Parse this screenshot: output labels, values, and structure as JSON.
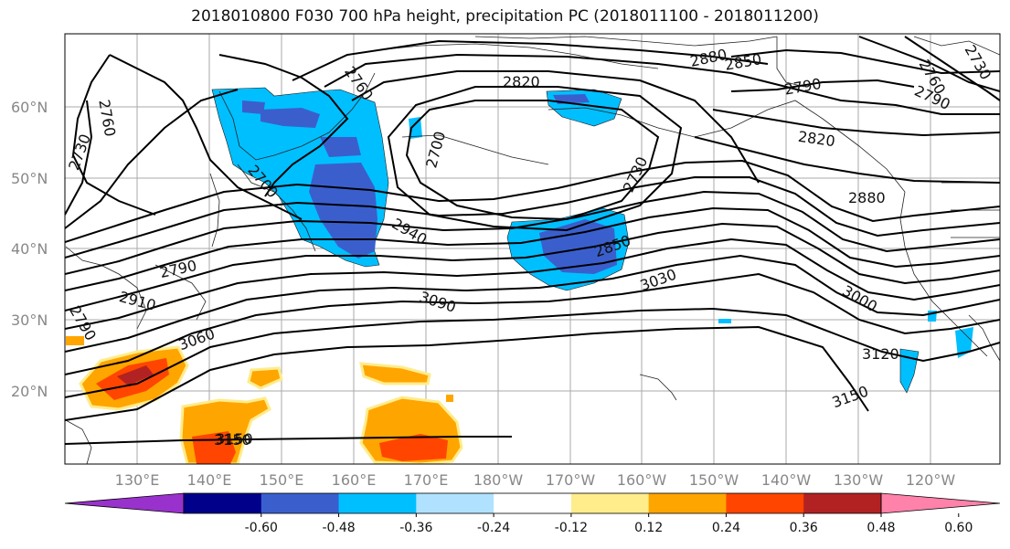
{
  "title": "2018010800 F030 700 hPa height, precipitation PC (2018011100 - 2018011200)",
  "lat_labels": [
    "60°N",
    "50°N",
    "40°N",
    "30°N",
    "20°N"
  ],
  "lon_labels": [
    "130°E",
    "140°E",
    "150°E",
    "160°E",
    "170°E",
    "180°W",
    "170°W",
    "160°W",
    "150°W",
    "140°W",
    "130°W",
    "120°W"
  ],
  "contour_labels": [
    "2760",
    "2730",
    "2760",
    "2700",
    "2700",
    "2730",
    "2820",
    "2850",
    "2880",
    "2790",
    "2820",
    "2880",
    "2760",
    "2730",
    "2790",
    "2790",
    "2850",
    "2940",
    "3030",
    "3000",
    "3090",
    "3060",
    "3120",
    "3150",
    "3150",
    "2790",
    "2910",
    "3150"
  ],
  "colorbar": {
    "colors": [
      "#9932CC",
      "#00008B",
      "#3A5FCD",
      "#00BFFF",
      "#B0E2FF",
      "#FFFFFF",
      "#FFEC8B",
      "#FFA500",
      "#FF4500",
      "#B22222",
      "#FF82AB"
    ],
    "tick_labels": [
      "-0.60",
      "-0.48",
      "-0.36",
      "-0.24",
      "-0.12",
      "0.12",
      "0.24",
      "0.36",
      "0.48",
      "0.60"
    ]
  }
}
